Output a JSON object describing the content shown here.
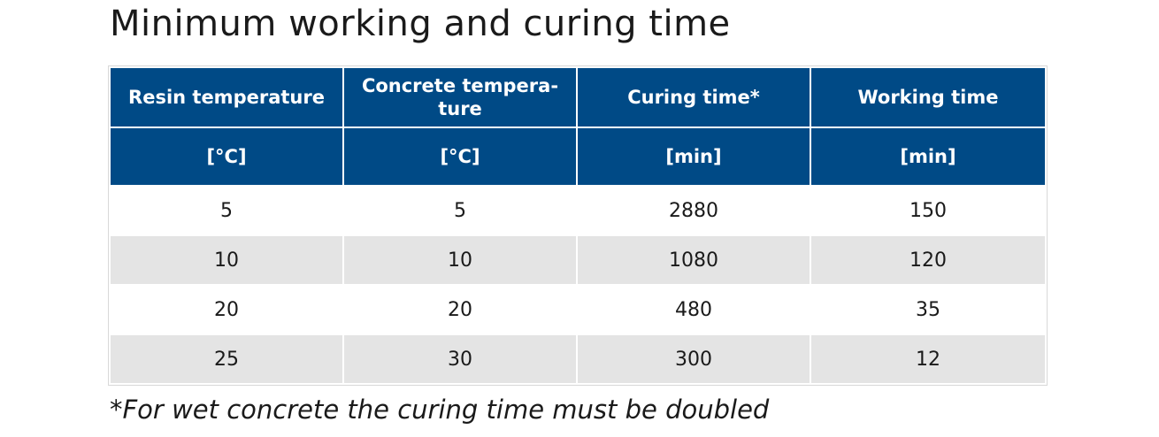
{
  "title": "Minimum working and curing time",
  "table": {
    "headers": [
      "Resin temperature",
      "Concrete tempera-\nture",
      "Curing time*",
      "Working time"
    ],
    "units": [
      "[°C]",
      "[°C]",
      "[min]",
      "[min]"
    ],
    "rows": [
      [
        "5",
        "5",
        "2880",
        "150"
      ],
      [
        "10",
        "10",
        "1080",
        "120"
      ],
      [
        "20",
        "20",
        "480",
        "35"
      ],
      [
        "25",
        "30",
        "300",
        "12"
      ]
    ]
  },
  "footnote": "*For wet concrete the curing time must be doubled",
  "colors": {
    "header_bg": "#004a86",
    "row_alt_bg": "#e4e4e4"
  }
}
